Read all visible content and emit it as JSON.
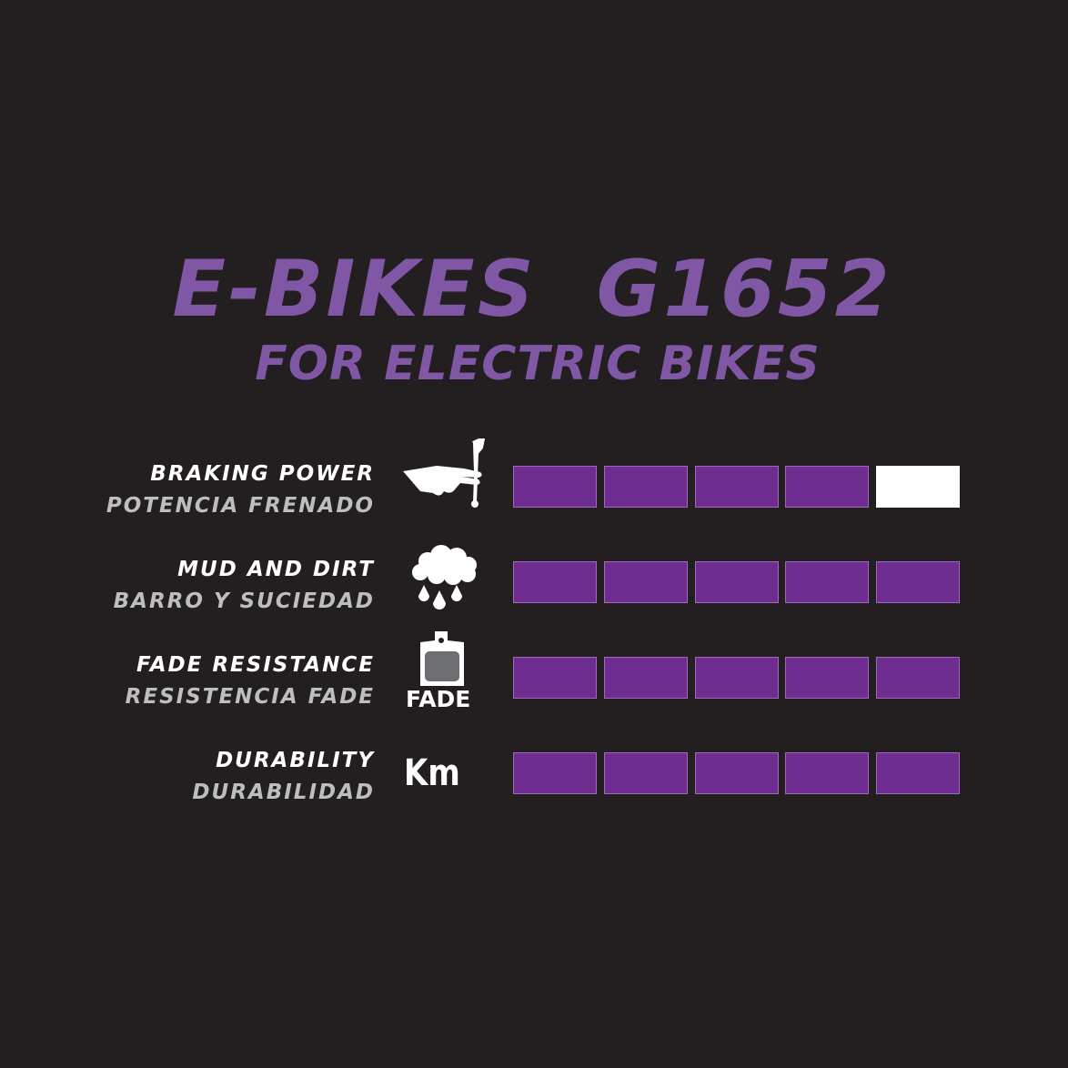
{
  "header": {
    "title": "E-BIKES  G1652",
    "subtitle": "FOR ELECTRIC BIKES"
  },
  "colors": {
    "background": "#231f20",
    "accent": "#7f57a5",
    "bar_fill": "#6f2c91",
    "bar_empty": "#ffffff"
  },
  "max_rating": 5,
  "ratings": [
    {
      "label_en": "BRAKING POWER",
      "label_es": "POTENCIA FRENADO",
      "icon": "hand-brake-lever-icon",
      "value": 4
    },
    {
      "label_en": "MUD AND DIRT",
      "label_es": "BARRO Y SUCIEDAD",
      "icon": "rain-cloud-icon",
      "value": 5
    },
    {
      "label_en": "FADE RESISTANCE",
      "label_es": "RESISTENCIA FADE",
      "icon": "brake-pad-icon",
      "icon_text": "FADE",
      "value": 5
    },
    {
      "label_en": "DURABILITY",
      "label_es": "DURABILIDAD",
      "icon": "km-icon",
      "icon_text": "Km",
      "value": 5
    }
  ]
}
